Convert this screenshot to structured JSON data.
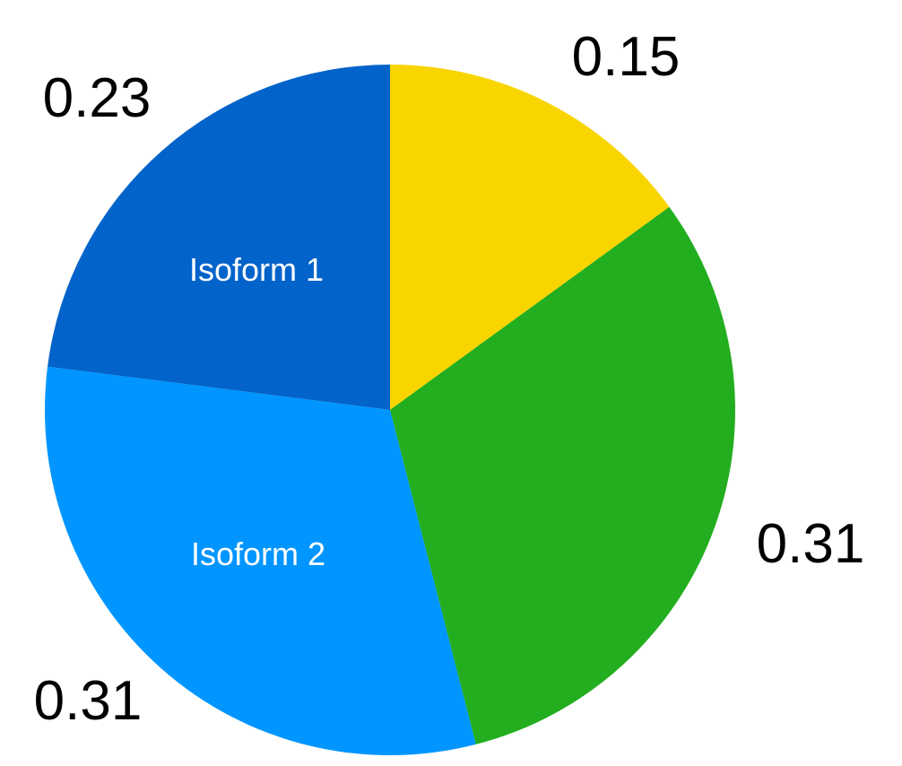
{
  "chart_data": {
    "type": "pie",
    "slices": [
      {
        "value": 0.15,
        "value_label": "0.15",
        "slice_label": "",
        "color": "#F9D500"
      },
      {
        "value": 0.31,
        "value_label": "0.31",
        "slice_label": "",
        "color": "#23AE1F"
      },
      {
        "value": 0.31,
        "value_label": "0.31",
        "slice_label": "Isoform 2",
        "color": "#0095FF"
      },
      {
        "value": 0.23,
        "value_label": "0.23",
        "slice_label": "Isoform 1",
        "color": "#0263CA"
      }
    ],
    "start_angle": "12 o'clock",
    "direction": "clockwise"
  }
}
